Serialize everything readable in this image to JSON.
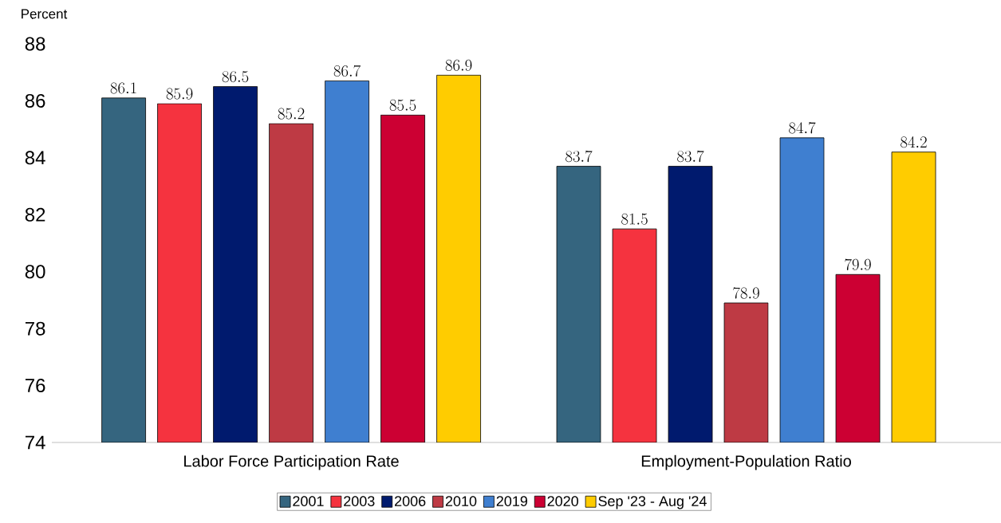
{
  "chart_data": {
    "type": "bar",
    "ylabel": "Percent",
    "categories": [
      "Labor Force Participation Rate",
      "Employment-Population Ratio"
    ],
    "series": [
      {
        "name": "2001",
        "color": "#35657f",
        "values": [
          86.1,
          83.7
        ]
      },
      {
        "name": "2003",
        "color": "#f5333f",
        "values": [
          85.9,
          81.5
        ]
      },
      {
        "name": "2006",
        "color": "#001a6e",
        "values": [
          86.5,
          83.7
        ]
      },
      {
        "name": "2010",
        "color": "#be3a44",
        "values": [
          85.2,
          78.9
        ]
      },
      {
        "name": "2019",
        "color": "#3f7fd0",
        "values": [
          86.7,
          84.7
        ]
      },
      {
        "name": "2020",
        "color": "#cc0033",
        "values": [
          85.5,
          79.9
        ]
      },
      {
        "name": "Sep '23 - Aug '24",
        "color": "#ffcc00",
        "values": [
          86.9,
          84.2
        ]
      }
    ],
    "ylim": [
      74,
      88
    ],
    "yticks": [
      74,
      76,
      78,
      80,
      82,
      84,
      86,
      88
    ],
    "data_labels": true,
    "legend": "bottom",
    "grid": false
  }
}
